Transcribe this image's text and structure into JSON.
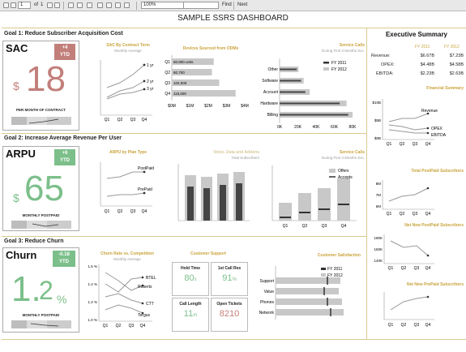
{
  "toolbar": {
    "page_current": "1",
    "page_of": "of",
    "page_total": "1",
    "zoom": "100%",
    "find_label": "Find",
    "next_label": "Next"
  },
  "title": "SAMPLE SSRS DASHBOARD",
  "goals": {
    "g1": "Goal 1: Reduce Subscriber Acquisition Cost",
    "g2": "Goal 2: Increase Average Revenue Per User",
    "g3": "Goal 3: Reduce Churn"
  },
  "kpis": {
    "sac": {
      "name": "SAC",
      "badge_value": "+4",
      "badge_label": "YTD",
      "currency": "$",
      "value": "18",
      "sub": "PER MONTH OF CONTRACT",
      "badge_color": "#c27f7a",
      "value_color": "#c27f7a"
    },
    "arpu": {
      "name": "ARPU",
      "badge_value": "+6",
      "badge_label": "YTD",
      "currency": "$",
      "value": "65",
      "sub": "MONTHLY POSTPAID",
      "badge_color": "#7cbf8a",
      "value_color": "#7cbf8a"
    },
    "churn": {
      "name": "Churn",
      "badge_value": "-0.18",
      "badge_label": "YTD",
      "value": "1.",
      "value_small": "2",
      "unit": "%",
      "sub": "MONTHLY POSTPAID",
      "badge_color": "#7cbf8a",
      "value_color": "#7cbf8a"
    }
  },
  "charts": {
    "sac_by_term": {
      "title": "SAC By Contract Term",
      "subtitle": "Monthly Average",
      "series": [
        "1 yr",
        "2 yr",
        "3 yr"
      ],
      "x": [
        "Q1",
        "Q2",
        "Q3",
        "Q4"
      ]
    },
    "devices": {
      "title": "Devices Sourced from ODMs",
      "x_ticks": [
        "$0M",
        "$1M",
        "$2M",
        "$3M",
        "$4M"
      ],
      "categories": [
        "Q1",
        "Q2",
        "Q3",
        "Q4"
      ],
      "labels": [
        "80,900 units",
        "80,700",
        "102,000",
        "115,600"
      ],
      "values": [
        2.3,
        2.2,
        2.6,
        3.5
      ]
    },
    "service_calls_1": {
      "title": "Service Calls",
      "subtitle": "During First 3 Months Svc.",
      "legend": [
        "FY 2011",
        "FY 2012"
      ],
      "categories": [
        "Other",
        "Software",
        "Account",
        "Hardware",
        "Billing"
      ],
      "x_ticks": [
        "0K",
        "20K",
        "40K",
        "60K",
        "80K"
      ],
      "fy2012": [
        22,
        28,
        35,
        78,
        85
      ],
      "fy2011": [
        20,
        25,
        30,
        70,
        80
      ]
    },
    "arpu_by_plan": {
      "title": "ARPU by Plan Type",
      "series": [
        "PostPaid",
        "PrePaid"
      ],
      "x": [
        "Q1",
        "Q2",
        "Q3",
        "Q4"
      ]
    },
    "voice_data": {
      "title": "Voice, Data and Addons",
      "subtitle": "Total Subscribers"
    },
    "service_calls_2": {
      "title": "Service Calls",
      "subtitle": "During First 3 Months Svc.",
      "legend": [
        "Offers",
        "Accepts"
      ],
      "x": [
        "Q1",
        "Q2",
        "Q3",
        "Q4"
      ]
    },
    "churn_rate": {
      "title": "Churn Rate vs. Competition",
      "subtitle": "Monthly Average",
      "y_ticks": [
        "1.6 %",
        "1.4 %",
        "1.2 %",
        "1.0 %"
      ],
      "series": [
        "BTEL",
        "Roberts",
        "CTT",
        "Tergus"
      ],
      "x": [
        "Q1",
        "Q2",
        "Q3",
        "Q4"
      ]
    },
    "customer_support": {
      "title": "Customer Support",
      "cells": [
        {
          "label": "Hold Time",
          "value": "80",
          "unit": "s"
        },
        {
          "label": "1st Call Res",
          "value": "91",
          "unit": "%"
        },
        {
          "label": "Call Length",
          "value": "11",
          "unit": "m"
        },
        {
          "label": "Open Tickets",
          "value": "8210",
          "unit": ""
        }
      ]
    },
    "customer_satisfaction": {
      "title": "Customer Satisfaction",
      "legend": [
        "FY 2011",
        "FY 2012"
      ],
      "categories": [
        "Support",
        "Value",
        "Phones",
        "Network"
      ]
    }
  },
  "exec_summary": {
    "title": "Executive Summary",
    "cols": [
      "FY 2011",
      "FY 2012"
    ],
    "rows": [
      {
        "label": "Revenue:",
        "fy2011": "$6.67B",
        "fy2012": "$7.23B"
      },
      {
        "label": "OPEX:",
        "fy2011": "$4.48B",
        "fy2012": "$4.58B"
      },
      {
        "label": "EBITDA:",
        "fy2011": "$2.23B",
        "fy2012": "$2.63B"
      }
    ],
    "financial": {
      "title": "Financial Summary",
      "y_ticks": [
        "$10B",
        "$5B",
        "$0B"
      ],
      "series": [
        "Revenue",
        "OPEX",
        "EBITDA"
      ],
      "x": [
        "Q1",
        "Q2",
        "Q3",
        "Q4"
      ]
    },
    "postpaid": {
      "title": "Total PostPaid Subscribers",
      "y_ticks": [
        "8M",
        "7M",
        "6M"
      ],
      "x": [
        "Q1",
        "Q2",
        "Q3",
        "Q4"
      ]
    },
    "net_postpaid": {
      "title": "Net New PostPaid Subscribers",
      "y_ticks": [
        "180K",
        "160K",
        "140K"
      ],
      "x": [
        "Q1",
        "Q2",
        "Q3",
        "Q4"
      ]
    },
    "net_prepaid": {
      "title": "Net New PrePaid Subscribers",
      "x": [
        "Q1",
        "Q2",
        "Q3",
        "Q4"
      ]
    }
  },
  "colors": {
    "accent_gold": "#c9a33b",
    "red": "#c27f7a",
    "green": "#7cbf8a",
    "grey": "#c8c8c8"
  }
}
